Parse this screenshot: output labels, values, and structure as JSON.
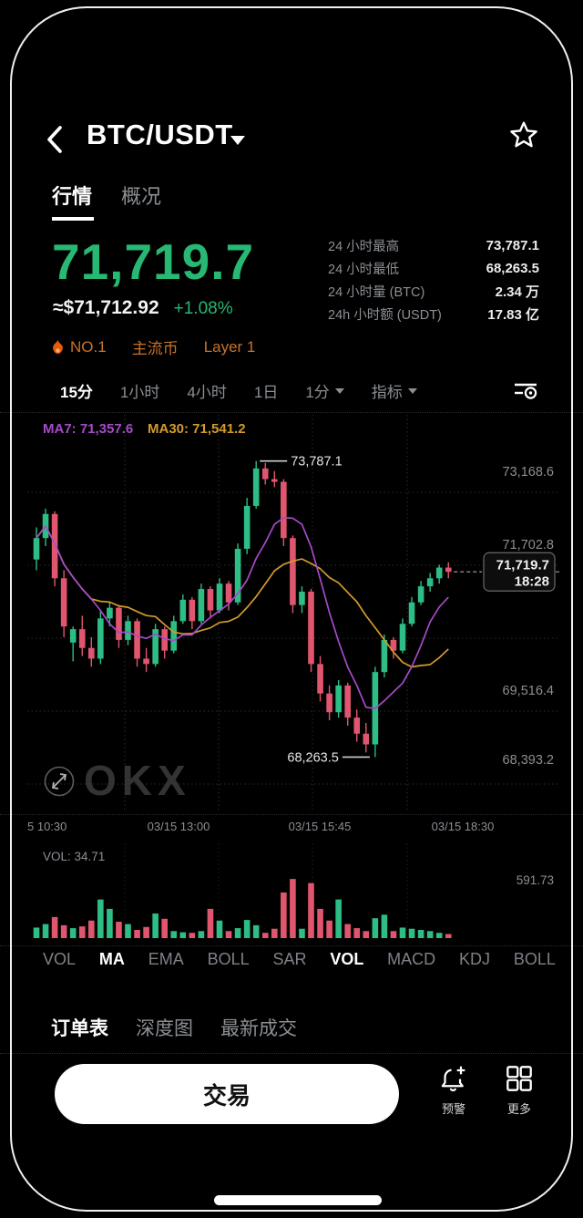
{
  "header": {
    "title": "BTC/USDT"
  },
  "tabs": [
    {
      "label": "行情",
      "active": true
    },
    {
      "label": "概况",
      "active": false
    }
  ],
  "ticker": {
    "price": "71,719.7",
    "fiat": "≈$71,712.92",
    "change": "+1.08%"
  },
  "stats": [
    {
      "label": "24 小时最高",
      "value": "73,787.1"
    },
    {
      "label": "24 小时最低",
      "value": "68,263.5"
    },
    {
      "label": "24 小时量 (BTC)",
      "value": "2.34 万"
    },
    {
      "label": "24h 小时额 (USDT)",
      "value": "17.83 亿"
    }
  ],
  "badges": [
    {
      "label": "NO.1",
      "flame": true
    },
    {
      "label": "主流币",
      "flame": false
    },
    {
      "label": "Layer 1",
      "flame": false
    }
  ],
  "timeframes": [
    {
      "label": "15分",
      "active": true,
      "caret": false
    },
    {
      "label": "1小时",
      "active": false,
      "caret": false
    },
    {
      "label": "4小时",
      "active": false,
      "caret": false
    },
    {
      "label": "1日",
      "active": false,
      "caret": false
    },
    {
      "label": "1分",
      "active": false,
      "caret": true
    },
    {
      "label": "指标",
      "active": false,
      "caret": true
    }
  ],
  "chart_data": {
    "type": "candlestick",
    "symbol": "BTC/USDT",
    "interval": "15分",
    "legend": {
      "ma7": "MA7: 71,357.6",
      "ma30": "MA30: 71,541.2"
    },
    "y_axis_labels": [
      "73,168.6",
      "71,702.8",
      "69,516.4",
      "68,393.2"
    ],
    "x_axis_labels": [
      "5 10:30",
      "03/15 13:00",
      "03/15 15:45",
      "03/15 18:30"
    ],
    "annotations": {
      "high": "73,787.1",
      "low": "68,263.5"
    },
    "current_price_tag": {
      "price": "71,719.7",
      "time": "18:28"
    },
    "high_value": 73787.1,
    "low_value": 68263.5,
    "current_value": 71719.7,
    "ylim": [
      67250,
      74650
    ],
    "grid": true,
    "watermark": "OKX",
    "candles_ohlc": [
      [
        71950,
        72550,
        71750,
        72350
      ],
      [
        72350,
        72900,
        72200,
        72800
      ],
      [
        72800,
        72850,
        71450,
        71600
      ],
      [
        71600,
        71750,
        70500,
        70700
      ],
      [
        70400,
        70700,
        70050,
        70650
      ],
      [
        70650,
        70900,
        70150,
        70300
      ],
      [
        70300,
        70500,
        69950,
        70100
      ],
      [
        70100,
        71000,
        70000,
        70850
      ],
      [
        70850,
        71150,
        70700,
        71050
      ],
      [
        71050,
        71100,
        70300,
        70450
      ],
      [
        70450,
        70900,
        70350,
        70800
      ],
      [
        70800,
        70850,
        69950,
        70100
      ],
      [
        70100,
        70300,
        69850,
        70000
      ],
      [
        70000,
        70750,
        69950,
        70650
      ],
      [
        70650,
        70700,
        70100,
        70250
      ],
      [
        70250,
        70900,
        70200,
        70800
      ],
      [
        70800,
        71300,
        70750,
        71200
      ],
      [
        71200,
        71250,
        70650,
        70800
      ],
      [
        70800,
        71500,
        70750,
        71400
      ],
      [
        71400,
        71450,
        70850,
        71000
      ],
      [
        71000,
        71600,
        70950,
        71500
      ],
      [
        71500,
        71550,
        71000,
        71150
      ],
      [
        71150,
        72250,
        71100,
        72150
      ],
      [
        72150,
        73100,
        72050,
        72950
      ],
      [
        72950,
        73787.1,
        72900,
        73650
      ],
      [
        73650,
        73750,
        73350,
        73450
      ],
      [
        73450,
        73600,
        73300,
        73400
      ],
      [
        73400,
        73450,
        72200,
        72350
      ],
      [
        72350,
        72400,
        70950,
        71100
      ],
      [
        71100,
        71450,
        70950,
        71350
      ],
      [
        71350,
        71400,
        69850,
        70000
      ],
      [
        70000,
        70150,
        69300,
        69450
      ],
      [
        69450,
        69600,
        68950,
        69100
      ],
      [
        69100,
        69700,
        69000,
        69600
      ],
      [
        69600,
        69650,
        68850,
        69000
      ],
      [
        69000,
        69150,
        68550,
        68700
      ],
      [
        68700,
        68900,
        68350,
        68500
      ],
      [
        68500,
        69950,
        68263.5,
        69850
      ],
      [
        69850,
        70550,
        69750,
        70450
      ],
      [
        70450,
        70500,
        70100,
        70250
      ],
      [
        70250,
        70850,
        70200,
        70750
      ],
      [
        70750,
        71250,
        70700,
        71150
      ],
      [
        71150,
        71550,
        71100,
        71450
      ],
      [
        71450,
        71700,
        71350,
        71600
      ],
      [
        71600,
        71850,
        71500,
        71800
      ],
      [
        71800,
        71900,
        71600,
        71719.7
      ]
    ],
    "volume_pane": {
      "type": "bar",
      "label": "VOL: 34.71",
      "axis_label": "591.73",
      "max": 591.73,
      "values": [
        90,
        120,
        180,
        110,
        85,
        100,
        150,
        330,
        250,
        140,
        120,
        70,
        95,
        210,
        165,
        60,
        50,
        45,
        60,
        250,
        150,
        60,
        85,
        155,
        110,
        45,
        80,
        390,
        505,
        80,
        470,
        250,
        150,
        330,
        120,
        85,
        60,
        170,
        200,
        60,
        90,
        80,
        70,
        60,
        45,
        34.71
      ]
    }
  },
  "indicators": [
    {
      "label": "VOL",
      "active": false
    },
    {
      "label": "MA",
      "active": true
    },
    {
      "label": "EMA",
      "active": false
    },
    {
      "label": "BOLL",
      "active": false
    },
    {
      "label": "SAR",
      "active": false
    },
    {
      "label": "VOL",
      "active": true
    },
    {
      "label": "MACD",
      "active": false
    },
    {
      "label": "KDJ",
      "active": false
    },
    {
      "label": "BOLL",
      "active": false
    }
  ],
  "bottom_tabs": [
    {
      "label": "订单表",
      "active": true
    },
    {
      "label": "深度图",
      "active": false
    },
    {
      "label": "最新成交",
      "active": false
    }
  ],
  "actions": {
    "trade": "交易",
    "alert": "预警",
    "more": "更多"
  },
  "colors": {
    "up": "#2dbd85",
    "down": "#e0566e",
    "price_green": "#27b873",
    "ma7": "#a64ac9",
    "ma30": "#d29b2c",
    "badge_orange": "#c8732c",
    "flame": "#e8590c",
    "axis_text": "#8b8f94",
    "grid": "#2b2b2b"
  }
}
